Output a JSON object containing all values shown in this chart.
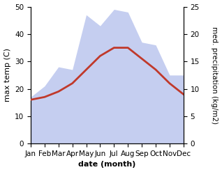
{
  "months": [
    "Jan",
    "Feb",
    "Mar",
    "Apr",
    "May",
    "Jun",
    "Jul",
    "Aug",
    "Sep",
    "Oct",
    "Nov",
    "Dec"
  ],
  "temperature": [
    16,
    17,
    19,
    22,
    27,
    32,
    35,
    35,
    31,
    27,
    22,
    18
  ],
  "precipitation": [
    8.5,
    10.5,
    14.0,
    13.5,
    23.5,
    21.5,
    24.5,
    24.0,
    18.5,
    18.0,
    12.5,
    12.5
  ],
  "temp_color": "#c0392b",
  "precip_color_fill": "#c5cef0",
  "temp_ylim": [
    0,
    50
  ],
  "precip_ylim": [
    0,
    25
  ],
  "xlabel": "date (month)",
  "ylabel_left": "max temp (C)",
  "ylabel_right": "med. precipitation (kg/m2)",
  "label_fontsize": 8,
  "tick_fontsize": 7.5,
  "line_width": 2.0,
  "background_color": "#ffffff"
}
